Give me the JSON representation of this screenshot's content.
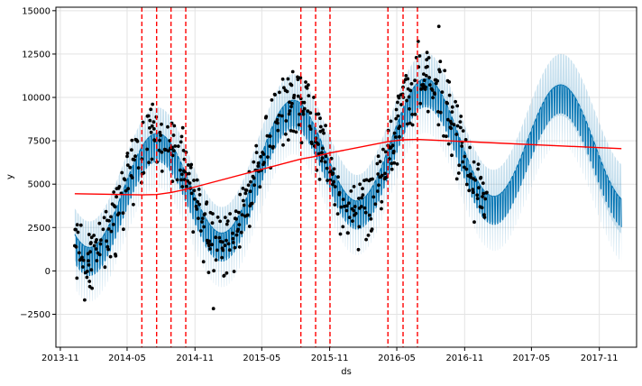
{
  "chart_data": {
    "type": "line",
    "xlabel": "ds",
    "ylabel": "y",
    "ylim": [
      -4400,
      15200
    ],
    "xlim": [
      "2013-10-20",
      "2018-02-10"
    ],
    "grid": true,
    "y_ticks": [
      -2500,
      0,
      2500,
      5000,
      7500,
      10000,
      12500,
      15000
    ],
    "y_tick_labels": [
      "−2500",
      "0",
      "2500",
      "5000",
      "7500",
      "10000",
      "12500",
      "15000"
    ],
    "x_ticks": [
      "2013-11-01",
      "2014-05-01",
      "2014-11-01",
      "2015-05-01",
      "2015-11-01",
      "2016-05-01",
      "2016-11-01",
      "2017-05-01",
      "2017-11-01"
    ],
    "x_tick_labels": [
      "2013-11",
      "2014-05",
      "2014-11",
      "2015-05",
      "2015-11",
      "2016-05",
      "2016-11",
      "2017-05",
      "2017-11"
    ],
    "history_start": "2013-12-10",
    "history_end": "2016-12-31",
    "forecast_end": "2017-12-31",
    "changepoints": [
      "2014-06-10",
      "2014-07-20",
      "2014-08-28",
      "2014-10-07",
      "2015-08-15",
      "2015-09-24",
      "2015-11-02",
      "2016-04-07",
      "2016-05-18",
      "2016-06-26"
    ],
    "trend": [
      {
        "x": "2013-12-10",
        "y": 4450
      },
      {
        "x": "2014-06-10",
        "y": 4380
      },
      {
        "x": "2014-07-20",
        "y": 4400
      },
      {
        "x": "2014-08-28",
        "y": 4520
      },
      {
        "x": "2014-10-07",
        "y": 4700
      },
      {
        "x": "2015-08-15",
        "y": 6450
      },
      {
        "x": "2015-09-24",
        "y": 6600
      },
      {
        "x": "2015-11-02",
        "y": 6800
      },
      {
        "x": "2016-04-07",
        "y": 7450
      },
      {
        "x": "2016-05-18",
        "y": 7560
      },
      {
        "x": "2016-06-26",
        "y": 7580
      },
      {
        "x": "2017-12-31",
        "y": 7050
      }
    ],
    "seasonal_amplitude": 3300,
    "seasonal_peak_day": 200,
    "weekly_amplitude": 1200,
    "uncertainty_halfwidth": 1500,
    "series": [
      {
        "role": "observed",
        "color": "#000000"
      },
      {
        "role": "forecast",
        "color": "#0072B2"
      },
      {
        "role": "uncertainty",
        "color": "#0072B2"
      },
      {
        "role": "trend",
        "color": "#ff0000"
      },
      {
        "role": "changepoint",
        "color": "#ff0000"
      }
    ]
  }
}
